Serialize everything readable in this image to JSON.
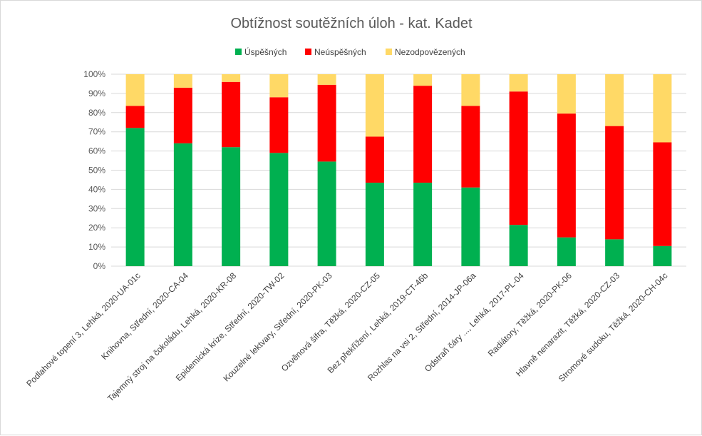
{
  "chart_data": {
    "type": "bar",
    "stacked": true,
    "title": "Obtížnost soutěžních úloh - kat. Kadet",
    "categories": [
      "Podlahové topení 3, Lehká, 2020-UA-01c",
      "Knihovna, Střední, 2020-CA-04",
      "Tajemný stroj na čokoládu, Lehká, 2020-KR-08",
      "Epidemická krize, Střední, 2020-TW-02",
      "Kouzelné lektvary, Střední, 2020-PK-03",
      "Ozvěnová šifra, Těžká, 2020-CZ-05",
      "Bez překřížení, Lehká, 2019-CT-46b",
      "Rozhlas na vsi 2, Střední, 2014-JP-06a",
      "Odstraň čáry ..., Lehká, 2017-PL-04",
      "Radiátory, Těžká, 2020-PK-06",
      "Hlavně nenarazit, Těžká, 2020-CZ-03",
      "Stromové sudoku, Těžká, 2020-CH-04c"
    ],
    "series": [
      {
        "name": "Úspěšných",
        "color": "#00b050",
        "values": [
          72,
          64,
          62,
          59,
          54.5,
          43.5,
          43.5,
          41,
          21.5,
          15,
          14,
          10.5
        ]
      },
      {
        "name": "Neúspěšných",
        "color": "#ff0000",
        "values": [
          11.5,
          29,
          34,
          29,
          40,
          24,
          50.5,
          42.5,
          69.5,
          64.5,
          59,
          54
        ]
      },
      {
        "name": "Nezodpovězených",
        "color": "#ffd966",
        "values": [
          16.5,
          7,
          4,
          12,
          5.5,
          32.5,
          6,
          16.5,
          9,
          20.5,
          27,
          35.5
        ]
      }
    ],
    "yticks": [
      "0%",
      "10%",
      "20%",
      "30%",
      "40%",
      "50%",
      "60%",
      "70%",
      "80%",
      "90%",
      "100%"
    ],
    "ylim": [
      0,
      100
    ],
    "grid": true,
    "legend": "top-center"
  }
}
